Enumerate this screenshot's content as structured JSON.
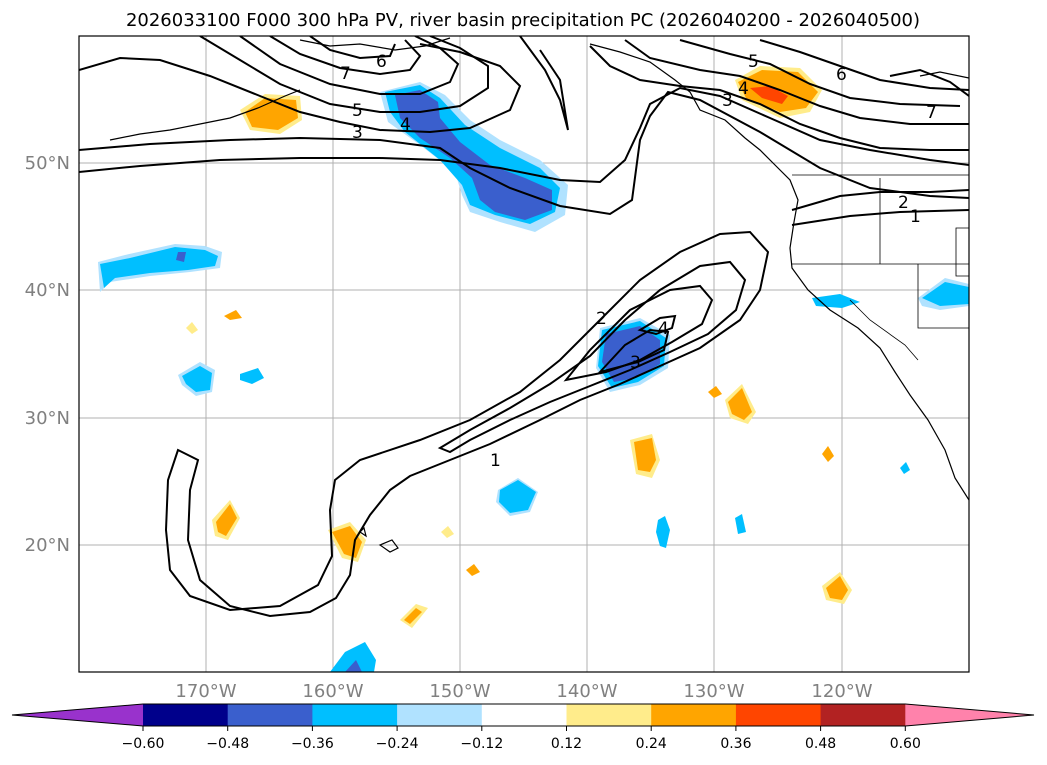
{
  "title": "2026033100 F000 300 hPa PV, river basin precipitation PC (2026040200 - 2026040500)",
  "map": {
    "lat_labels": [
      "50°N",
      "40°N",
      "30°N",
      "20°N"
    ],
    "lon_labels": [
      "170°W",
      "160°W",
      "150°W",
      "140°W",
      "130°W",
      "120°W"
    ]
  },
  "contour_labels": {
    "north_7": "7",
    "north_6": "6",
    "north_5": "5",
    "north_4": "4",
    "north_3": "3",
    "coast_5": "5",
    "coast_4": "4",
    "coast_3": "3",
    "east_6": "6",
    "east_7": "7",
    "east_2": "2",
    "east_1": "1",
    "sub_2": "2",
    "sub_4": "4",
    "sub_3": "3",
    "sub_1": "1"
  },
  "colorbar": {
    "ticks": [
      "−0.60",
      "−0.48",
      "−0.36",
      "−0.24",
      "−0.12",
      "0.12",
      "0.24",
      "0.36",
      "0.48",
      "0.60"
    ],
    "colors": [
      "#9932cc",
      "#00008b",
      "#3a5fcd",
      "#00bfff",
      "#b0e2ff",
      "#ffffff",
      "#ffec8b",
      "#ffa500",
      "#ff4500",
      "#b22222",
      "#ff82ab"
    ]
  },
  "colors": {
    "blue_light": "#b0e2ff",
    "blue_mid": "#00bfff",
    "blue_dark": "#3a5fcd",
    "yellow": "#ffec8b",
    "orange": "#ffa500",
    "red": "#ff4500"
  }
}
